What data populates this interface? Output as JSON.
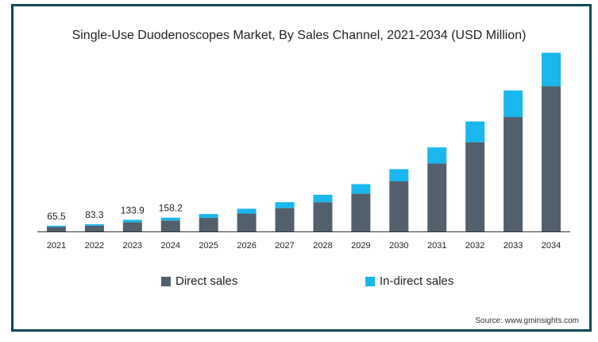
{
  "chart_data": {
    "type": "bar",
    "stacked": true,
    "title": "Single-Use Duodenoscopes Market, By Sales Channel, 2021-2034 (USD Million)",
    "categories": [
      "2021",
      "2022",
      "2023",
      "2024",
      "2025",
      "2026",
      "2027",
      "2028",
      "2029",
      "2030",
      "2031",
      "2032",
      "2033",
      "2034"
    ],
    "series": [
      {
        "name": "Direct sales",
        "color": "#525f6c",
        "values": [
          51,
          65,
          106,
          125,
          156,
          205,
          268,
          336,
          433,
          575,
          780,
          1024,
          1314,
          1668
        ]
      },
      {
        "name": "In-direct sales",
        "color": "#1ab6ec",
        "values": [
          14.5,
          18.3,
          27.9,
          33.2,
          44,
          56,
          68,
          85,
          110,
          140,
          185,
          239,
          305,
          383
        ]
      }
    ],
    "data_labels": [
      "65.5",
      "83.3",
      "133.9",
      "158.2"
    ],
    "ylim": [
      0,
      2100
    ],
    "grid": false,
    "legend": "bottom",
    "source": "Source: www.gminsights.com"
  }
}
